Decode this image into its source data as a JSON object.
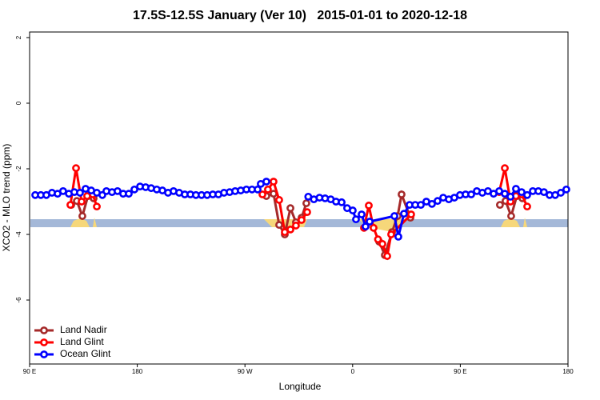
{
  "chart_data": {
    "type": "line",
    "title": "17.5S-12.5S January (Ver 10)   2015-01-01 to 2020-12-18",
    "x_label": "Longitude",
    "y_label": "XCO2 - MLO trend (ppm)",
    "xlim": [
      90,
      540
    ],
    "xticks": [
      {
        "value": 90,
        "label": "90 E"
      },
      {
        "value": 180,
        "label": "180"
      },
      {
        "value": 270,
        "label": "90 W"
      },
      {
        "value": 360,
        "label": "0"
      },
      {
        "value": 450,
        "label": "90 E"
      },
      {
        "value": 540,
        "label": "180"
      }
    ],
    "ylim": [
      -7.95,
      2.17
    ],
    "yticks": [
      2,
      0,
      -2,
      -4,
      -6
    ],
    "legend": "bottomleft",
    "series": [
      {
        "name": "Land Nadir",
        "color": "#a52a2a",
        "x": [
          124.8,
          129.5,
          134.1,
          138.8,
          143.5,
          200,
          287.9,
          293.9,
          298.6,
          303.3,
          308,
          312.6,
          317.3,
          321.3,
          390,
          382.2,
          386.9,
          392.9,
          397.6,
          400.9,
          408.3,
          450,
          483.1,
          487.8,
          492.5,
          497.2,
          501.9
        ],
        "values": [
          -3.1,
          -2.98,
          -3.44,
          -2.83,
          -2.9,
          null,
          -2.83,
          -2.76,
          -3.71,
          -4.0,
          -3.2,
          -3.63,
          -3.49,
          -3.05,
          null,
          -4.22,
          -4.63,
          -3.93,
          -3.44,
          -2.78,
          -3.49,
          null,
          -3.1,
          -2.98,
          -3.44,
          -2.83,
          -2.9
        ]
      },
      {
        "name": "Land Glint",
        "color": "#ff0000",
        "x": [
          124.1,
          128.8,
          133.5,
          138.1,
          142.8,
          146.2,
          200,
          284.6,
          289.2,
          293.9,
          298.6,
          303.3,
          308,
          312.6,
          317.3,
          322,
          340,
          369.5,
          373.5,
          377.5,
          381.2,
          384.9,
          388.9,
          392.2,
          408.9,
          450,
          482.5,
          487.2,
          491.9,
          496.5,
          501.2,
          505.9
        ],
        "values": [
          -3.1,
          -1.98,
          -3.0,
          -2.83,
          -2.78,
          -3.15,
          null,
          -2.78,
          -2.63,
          -2.39,
          -2.95,
          -3.93,
          -3.85,
          -3.73,
          -3.56,
          -3.32,
          null,
          -3.8,
          -3.12,
          -3.8,
          -4.15,
          -4.29,
          -4.66,
          -4.0,
          -3.39,
          null,
          -2.71,
          -1.98,
          -3.0,
          -2.83,
          -2.78,
          -3.15
        ]
      },
      {
        "name": "Ocean Glint",
        "color": "#0000ff",
        "x": [
          94.7,
          99.4,
          104,
          108.7,
          113.4,
          118,
          122.8,
          127.4,
          132.1,
          136.8,
          141.5,
          146.2,
          150.8,
          154.2,
          158.9,
          163.5,
          168.2,
          172.9,
          177.6,
          182.3,
          187,
          191.6,
          196.3,
          201,
          205.7,
          210.3,
          215,
          219.7,
          224.4,
          229,
          233.7,
          238.4,
          243.1,
          247.8,
          252.5,
          257.2,
          261.8,
          266.5,
          271.2,
          275.9,
          280.6,
          283.2,
          287.9,
          295,
          322.9,
          327.6,
          332.3,
          337,
          341.7,
          346.1,
          350.8,
          355.4,
          360.1,
          362.8,
          367.5,
          370.8,
          374.2,
          394.9,
          398.2,
          402.9,
          407.6,
          412.3,
          417,
          421.6,
          426.3,
          431,
          435.7,
          440.4,
          445,
          449.7,
          454.4,
          459.1,
          463.8,
          468.4,
          473.1,
          477.8,
          482.5,
          487.2,
          491.9,
          496.5,
          501.2,
          505.9,
          510.6,
          515.2,
          519.9,
          524.6,
          529.3,
          534,
          538.6
        ],
        "values": [
          -2.8,
          -2.8,
          -2.8,
          -2.73,
          -2.76,
          -2.68,
          -2.76,
          -2.71,
          -2.73,
          -2.61,
          -2.66,
          -2.73,
          -2.8,
          -2.68,
          -2.71,
          -2.68,
          -2.76,
          -2.76,
          -2.63,
          -2.54,
          -2.56,
          -2.59,
          -2.63,
          -2.66,
          -2.73,
          -2.68,
          -2.73,
          -2.78,
          -2.78,
          -2.8,
          -2.8,
          -2.8,
          -2.78,
          -2.78,
          -2.73,
          -2.71,
          -2.68,
          -2.66,
          -2.63,
          -2.63,
          -2.63,
          -2.46,
          -2.39,
          null,
          -2.85,
          -2.93,
          -2.88,
          -2.9,
          -2.93,
          -3.0,
          -3.02,
          -3.2,
          -3.27,
          -3.54,
          -3.39,
          -3.76,
          -3.61,
          -3.44,
          -4.07,
          -3.37,
          -3.1,
          -3.1,
          -3.1,
          -3.0,
          -3.07,
          -2.98,
          -2.88,
          -2.93,
          -2.88,
          -2.8,
          -2.78,
          -2.78,
          -2.68,
          -2.73,
          -2.68,
          -2.76,
          -2.68,
          -2.76,
          -2.85,
          -2.61,
          -2.71,
          -2.8,
          -2.68,
          -2.68,
          -2.71,
          -2.8,
          -2.8,
          -2.73,
          -2.63
        ]
      }
    ]
  }
}
